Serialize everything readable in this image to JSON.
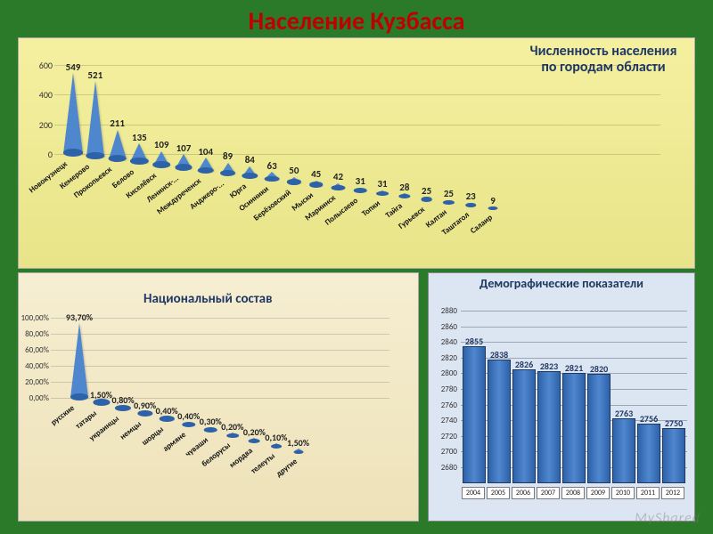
{
  "page_title": "Население Кузбасса",
  "cities_chart": {
    "type": "3d-cone",
    "title_ru": "Численность населения по городам области",
    "background_gradient": [
      "#f4f0a0",
      "#e8e488"
    ],
    "y_ticks": [
      0,
      200,
      400,
      600
    ],
    "ylim": [
      0,
      600
    ],
    "label_fontsize": 11,
    "tick_fontsize": 10,
    "cone_color": "#4f87cf",
    "cone_base_color": "#2e62a8",
    "categories": [
      "Новокузнецк",
      "Кемерово",
      "Прокопьевск",
      "Белово",
      "Киселёвск",
      "Ленинск-...",
      "Междуреченск",
      "Анджеро-...",
      "Юрга",
      "Осинники",
      "Берёзовский",
      "Мыски",
      "Мариинск",
      "Полысаево",
      "Топки",
      "Тайга",
      "Гурьевск",
      "Калтан",
      "Таштагол",
      "Салаир"
    ],
    "values": [
      549,
      521,
      211,
      135,
      109,
      107,
      104,
      89,
      84,
      63,
      50,
      45,
      42,
      31,
      31,
      28,
      25,
      25,
      23,
      9
    ]
  },
  "ethnic_chart": {
    "type": "3d-cone",
    "title_ru": "Национальный состав",
    "background_gradient": [
      "#f6eed2",
      "#ede2b8"
    ],
    "y_ticks_pct": [
      0,
      20,
      40,
      60,
      80,
      100
    ],
    "ylim_pct": [
      0,
      100
    ],
    "cone_color": "#4f87cf",
    "cone_base_color": "#2e62a8",
    "label_fontsize": 10,
    "categories": [
      "русские",
      "татары",
      "украинцы",
      "немцы",
      "шорцы",
      "армяне",
      "чуваши",
      "белорусы",
      "мордва",
      "телеуты",
      "другие"
    ],
    "values_pct": [
      93.7,
      1.5,
      0.8,
      0.9,
      0.4,
      0.4,
      0.3,
      0.2,
      0.2,
      0.1,
      1.5
    ],
    "labels": [
      "93,70%",
      "1,50%",
      "0,80%",
      "0,90%",
      "0,40%",
      "0,40%",
      "0,30%",
      "0,20%",
      "0,20%",
      "0,10%",
      "1,50%"
    ]
  },
  "demographics_chart": {
    "type": "bar",
    "title_ru": "Демографические показатели",
    "background_color": "#dce6f2",
    "bar_fill": "#4f87cf",
    "bar_border": "#1f3864",
    "grid_color": "#9aa7b8",
    "ylim": [
      2680,
      2880
    ],
    "y_tick_step": 20,
    "y_ticks": [
      2680,
      2700,
      2720,
      2740,
      2760,
      2780,
      2800,
      2820,
      2840,
      2860,
      2880
    ],
    "categories": [
      "2004",
      "2005",
      "2006",
      "2007",
      "2008",
      "2009",
      "2010",
      "2011",
      "2012"
    ],
    "values": [
      2855,
      2838,
      2826,
      2823,
      2821,
      2820,
      2763,
      2756,
      2750
    ],
    "label_fontsize": 10,
    "cat_fontsize": 8
  },
  "watermark": "MyShared"
}
